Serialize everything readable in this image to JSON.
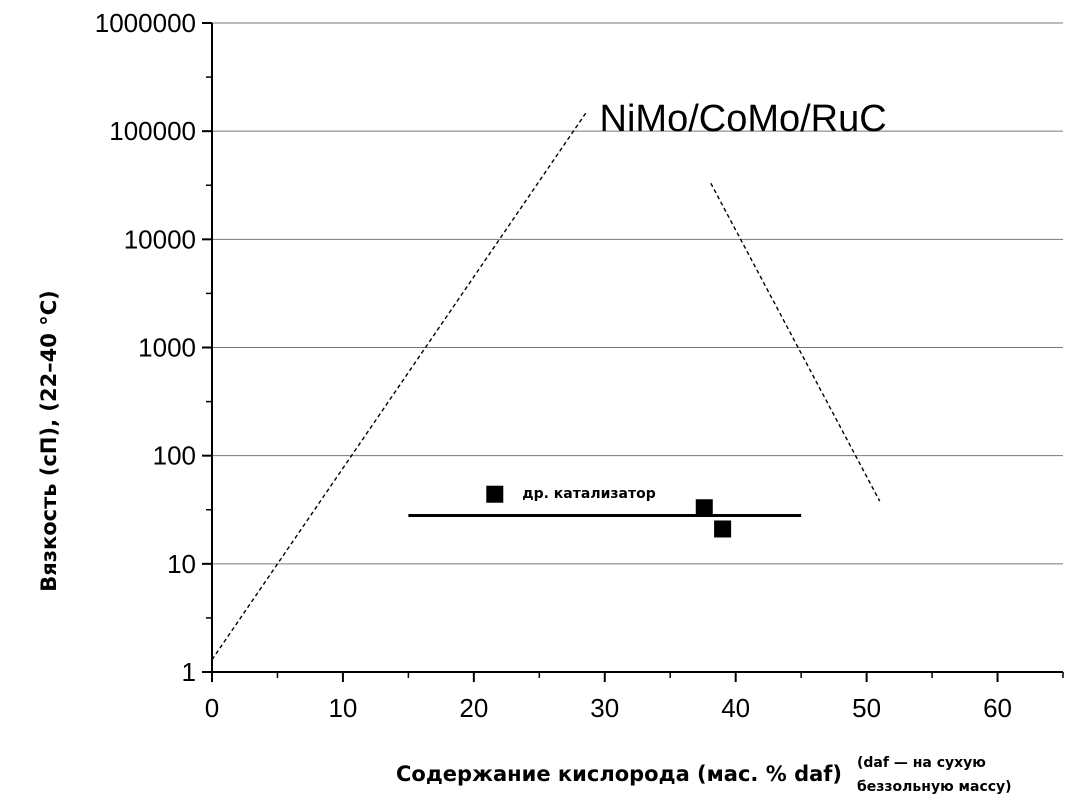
{
  "chart_data": {
    "type": "scatter",
    "title": "",
    "xlabel": "Содержание кислорода (мас. % daf)",
    "xlabel_note": [
      "(daf — на сухую",
      "беззольную массу)"
    ],
    "ylabel": "Вязкость (сП), (22–40 °C)",
    "xlim": [
      0,
      65
    ],
    "ylim": [
      1,
      1000000
    ],
    "y_scale": "log",
    "grid": "horizontal",
    "x_ticks": [
      "0",
      "10",
      "20",
      "30",
      "40",
      "50",
      "60"
    ],
    "y_ticks": [
      "1",
      "10",
      "100",
      "1000",
      "10000",
      "100000",
      "1000000"
    ],
    "points": [
      {
        "x": 21.6,
        "y": 44
      },
      {
        "x": 37.6,
        "y": 33
      },
      {
        "x": 39.0,
        "y": 21
      }
    ],
    "lines": [
      {
        "style": "dashed",
        "x": [
          0,
          28.6
        ],
        "y": [
          1.3,
          150000
        ]
      },
      {
        "style": "dashed",
        "x": [
          38.1,
          51.0
        ],
        "y": [
          33000,
          38
        ]
      },
      {
        "style": "solid",
        "x": [
          15,
          45
        ],
        "y": [
          28,
          28
        ]
      }
    ],
    "annotations": [
      {
        "text": "NiMo/CoMo/RuC",
        "x": 29.6,
        "y": 100000,
        "size": "large"
      },
      {
        "text": "др. катализатор",
        "x": 23.7,
        "y": 45,
        "size": "small"
      }
    ],
    "colors": {
      "markers": "#000000",
      "lines": "#000000",
      "grid": "#777777"
    }
  }
}
